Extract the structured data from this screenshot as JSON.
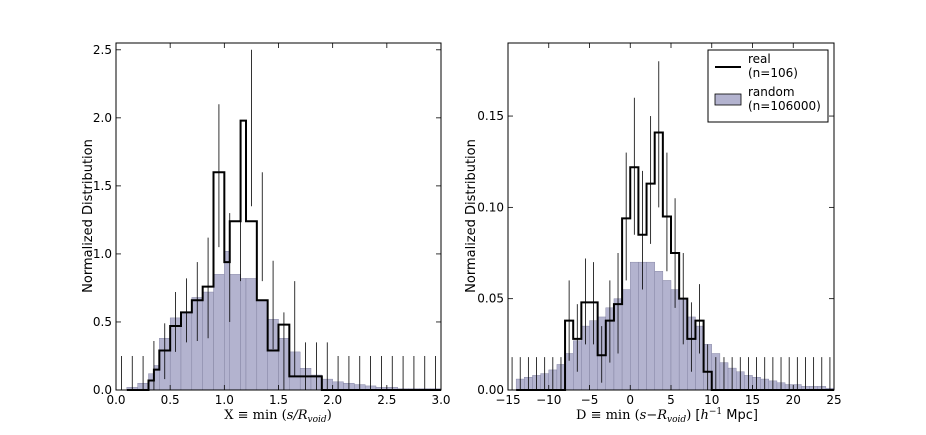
{
  "chart_data": [
    {
      "type": "histogram",
      "xlabel": "X ≡ min (s/R_void)",
      "xlabel_parts": {
        "pre": "X ≡ min (",
        "var": "s/R",
        "sub": "void",
        "post": ")"
      },
      "ylabel": "Normalized Distribution",
      "xlim": [
        0.0,
        3.0
      ],
      "ylim": [
        0.0,
        2.55
      ],
      "xticks": [
        "0.0",
        "0.5",
        "1.0",
        "1.5",
        "2.0",
        "2.5",
        "3.0"
      ],
      "yticks": [
        "0.0",
        "0.5",
        "1.0",
        "1.5",
        "2.0",
        "2.5"
      ],
      "bin_edges": [
        0.1,
        0.2,
        0.3,
        0.35,
        0.4,
        0.5,
        0.6,
        0.7,
        0.8,
        0.9,
        1.0,
        1.05,
        1.15,
        1.2,
        1.3,
        1.4,
        1.5,
        1.6,
        1.7,
        1.8,
        1.9,
        2.0,
        2.1,
        2.2,
        2.3,
        2.4,
        2.5,
        2.6,
        2.7,
        2.8,
        2.9,
        3.0
      ],
      "series": [
        {
          "name": "random",
          "kind": "filled",
          "color": "#b3b3cf",
          "values": [
            0.02,
            0.05,
            0.12,
            0.18,
            0.38,
            0.53,
            0.57,
            0.68,
            0.72,
            0.85,
            1.02,
            0.85,
            0.82,
            0.82,
            0.66,
            0.52,
            0.38,
            0.28,
            0.16,
            0.11,
            0.08,
            0.06,
            0.05,
            0.04,
            0.03,
            0.02,
            0.02,
            0.01,
            0.01,
            0.01,
            0.01
          ]
        },
        {
          "name": "real",
          "kind": "step",
          "color": "#000000",
          "values": [
            0.0,
            0.0,
            0.07,
            0.15,
            0.29,
            0.47,
            0.57,
            0.66,
            0.76,
            1.6,
            0.94,
            1.24,
            1.98,
            1.24,
            0.66,
            0.29,
            0.48,
            0.1,
            0.1,
            0.1,
            0.0,
            0.0,
            0.0,
            0.0,
            0.0,
            0.0,
            0.0,
            0.0,
            0.0,
            0.0,
            0.0
          ],
          "error_bars": [
            {
              "x": 0.05,
              "lo": 0.0,
              "hi": 0.25
            },
            {
              "x": 0.15,
              "lo": 0.0,
              "hi": 0.25
            },
            {
              "x": 0.25,
              "lo": 0.0,
              "hi": 0.25
            },
            {
              "x": 0.35,
              "lo": 0.0,
              "hi": 0.36
            },
            {
              "x": 0.45,
              "lo": 0.08,
              "hi": 0.49
            },
            {
              "x": 0.55,
              "lo": 0.28,
              "hi": 0.72
            },
            {
              "x": 0.65,
              "lo": 0.35,
              "hi": 0.82
            },
            {
              "x": 0.75,
              "lo": 0.36,
              "hi": 0.94
            },
            {
              "x": 0.85,
              "lo": 0.38,
              "hi": 1.12
            },
            {
              "x": 0.95,
              "lo": 1.05,
              "hi": 2.1
            },
            {
              "x": 1.05,
              "lo": 0.5,
              "hi": 1.3
            },
            {
              "x": 1.15,
              "lo": 0.8,
              "hi": 1.7
            },
            {
              "x": 1.25,
              "lo": 1.35,
              "hi": 2.5
            },
            {
              "x": 1.35,
              "lo": 0.8,
              "hi": 1.6
            },
            {
              "x": 1.45,
              "lo": 0.3,
              "hi": 0.95
            },
            {
              "x": 1.55,
              "lo": 0.0,
              "hi": 0.57
            },
            {
              "x": 1.65,
              "lo": 0.1,
              "hi": 0.8
            },
            {
              "x": 1.75,
              "lo": 0.0,
              "hi": 0.35
            },
            {
              "x": 1.85,
              "lo": 0.0,
              "hi": 0.35
            },
            {
              "x": 1.95,
              "lo": 0.0,
              "hi": 0.35
            },
            {
              "x": 2.05,
              "lo": 0.0,
              "hi": 0.25
            },
            {
              "x": 2.15,
              "lo": 0.0,
              "hi": 0.25
            },
            {
              "x": 2.25,
              "lo": 0.0,
              "hi": 0.25
            },
            {
              "x": 2.35,
              "lo": 0.0,
              "hi": 0.25
            },
            {
              "x": 2.45,
              "lo": 0.0,
              "hi": 0.25
            },
            {
              "x": 2.55,
              "lo": 0.0,
              "hi": 0.25
            },
            {
              "x": 2.65,
              "lo": 0.0,
              "hi": 0.25
            },
            {
              "x": 2.75,
              "lo": 0.0,
              "hi": 0.25
            },
            {
              "x": 2.85,
              "lo": 0.0,
              "hi": 0.25
            },
            {
              "x": 2.95,
              "lo": 0.0,
              "hi": 0.25
            }
          ]
        }
      ]
    },
    {
      "type": "histogram",
      "xlabel": "D ≡ min (s−R_void) [h^-1 Mpc]",
      "xlabel_parts": {
        "pre": "D ≡ min (",
        "var": "s−R",
        "sub": "void",
        "post": ")",
        "unit_pre": " [",
        "unit_h": "h",
        "unit_sup": "−1",
        "unit_post": " Mpc]"
      },
      "ylabel": "Normalized Distribution",
      "xlim": [
        -15,
        25
      ],
      "ylim": [
        0.0,
        0.19
      ],
      "xticks": [
        "−15",
        "−10",
        "−5",
        "0",
        "5",
        "10",
        "15",
        "20",
        "25"
      ],
      "yticks": [
        "0.00",
        "0.05",
        "0.10",
        "0.15"
      ],
      "bin_edges": [
        -14,
        -13,
        -12,
        -11,
        -10,
        -9,
        -8,
        -7,
        -6,
        -5,
        -4,
        -3,
        -2,
        -1,
        0,
        1,
        2,
        3,
        4,
        5,
        6,
        7,
        8,
        9,
        10,
        11,
        12,
        13,
        14,
        15,
        16,
        17,
        18,
        19,
        20,
        21,
        22,
        23,
        24,
        25
      ],
      "series": [
        {
          "name": "random",
          "label": "random\n(n=106000)",
          "kind": "filled",
          "color": "#b3b3cf",
          "values": [
            0.006,
            0.007,
            0.008,
            0.009,
            0.011,
            0.014,
            0.02,
            0.027,
            0.035,
            0.038,
            0.04,
            0.045,
            0.05,
            0.055,
            0.07,
            0.07,
            0.07,
            0.065,
            0.06,
            0.055,
            0.05,
            0.04,
            0.035,
            0.025,
            0.02,
            0.015,
            0.012,
            0.01,
            0.008,
            0.007,
            0.006,
            0.005,
            0.004,
            0.003,
            0.003,
            0.002,
            0.002,
            0.002,
            0.001
          ]
        },
        {
          "name": "real",
          "label": "real\n(n=106)",
          "kind": "step",
          "color": "#000000",
          "values": [
            0.0,
            0.0,
            0.0,
            0.0,
            0.0,
            0.0,
            0.038,
            0.028,
            0.048,
            0.048,
            0.019,
            0.038,
            0.047,
            0.094,
            0.122,
            0.085,
            0.113,
            0.141,
            0.095,
            0.075,
            0.05,
            0.028,
            0.038,
            0.01,
            0.0,
            0.0,
            0.0,
            0.0,
            0.0,
            0.0,
            0.0,
            0.0,
            0.0,
            0.0,
            0.0,
            0.0,
            0.0,
            0.0,
            0.0
          ],
          "error_bars": [
            {
              "x": -14.5,
              "lo": 0.0,
              "hi": 0.018
            },
            {
              "x": -13.5,
              "lo": 0.0,
              "hi": 0.018
            },
            {
              "x": -12.5,
              "lo": 0.0,
              "hi": 0.018
            },
            {
              "x": -11.5,
              "lo": 0.0,
              "hi": 0.018
            },
            {
              "x": -10.5,
              "lo": 0.0,
              "hi": 0.018
            },
            {
              "x": -9.5,
              "lo": 0.0,
              "hi": 0.018
            },
            {
              "x": -8.5,
              "lo": 0.0,
              "hi": 0.018
            },
            {
              "x": -7.5,
              "lo": 0.016,
              "hi": 0.06
            },
            {
              "x": -6.5,
              "lo": 0.01,
              "hi": 0.047
            },
            {
              "x": -5.5,
              "lo": 0.025,
              "hi": 0.072
            },
            {
              "x": -4.5,
              "lo": 0.025,
              "hi": 0.07
            },
            {
              "x": -3.5,
              "lo": 0.004,
              "hi": 0.035
            },
            {
              "x": -2.5,
              "lo": 0.015,
              "hi": 0.06
            },
            {
              "x": -1.5,
              "lo": 0.02,
              "hi": 0.075
            },
            {
              "x": -0.5,
              "lo": 0.06,
              "hi": 0.13
            },
            {
              "x": 0.5,
              "lo": 0.085,
              "hi": 0.16
            },
            {
              "x": 1.5,
              "lo": 0.055,
              "hi": 0.12
            },
            {
              "x": 2.5,
              "lo": 0.08,
              "hi": 0.15
            },
            {
              "x": 3.5,
              "lo": 0.1,
              "hi": 0.18
            },
            {
              "x": 4.5,
              "lo": 0.065,
              "hi": 0.13
            },
            {
              "x": 5.5,
              "lo": 0.045,
              "hi": 0.105
            },
            {
              "x": 6.5,
              "lo": 0.025,
              "hi": 0.075
            },
            {
              "x": 7.5,
              "lo": 0.01,
              "hi": 0.048
            },
            {
              "x": 8.5,
              "lo": 0.02,
              "hi": 0.058
            },
            {
              "x": 9.5,
              "lo": 0.0,
              "hi": 0.025
            },
            {
              "x": 10.5,
              "lo": 0.0,
              "hi": 0.018
            },
            {
              "x": 11.5,
              "lo": 0.0,
              "hi": 0.018
            },
            {
              "x": 12.5,
              "lo": 0.0,
              "hi": 0.018
            },
            {
              "x": 13.5,
              "lo": 0.0,
              "hi": 0.018
            },
            {
              "x": 14.5,
              "lo": 0.0,
              "hi": 0.018
            },
            {
              "x": 15.5,
              "lo": 0.0,
              "hi": 0.018
            },
            {
              "x": 16.5,
              "lo": 0.0,
              "hi": 0.018
            },
            {
              "x": 17.5,
              "lo": 0.0,
              "hi": 0.018
            },
            {
              "x": 18.5,
              "lo": 0.0,
              "hi": 0.018
            },
            {
              "x": 19.5,
              "lo": 0.0,
              "hi": 0.018
            },
            {
              "x": 20.5,
              "lo": 0.0,
              "hi": 0.018
            },
            {
              "x": 21.5,
              "lo": 0.0,
              "hi": 0.018
            },
            {
              "x": 22.5,
              "lo": 0.0,
              "hi": 0.018
            },
            {
              "x": 23.5,
              "lo": 0.0,
              "hi": 0.018
            },
            {
              "x": 24.5,
              "lo": 0.0,
              "hi": 0.018
            }
          ]
        }
      ],
      "legend": {
        "placement": "top-right",
        "entries": [
          {
            "label_line1": "real",
            "label_line2": "(n=106)",
            "style": "line"
          },
          {
            "label_line1": "random",
            "label_line2": "(n=106000)",
            "style": "patch"
          }
        ]
      }
    }
  ]
}
